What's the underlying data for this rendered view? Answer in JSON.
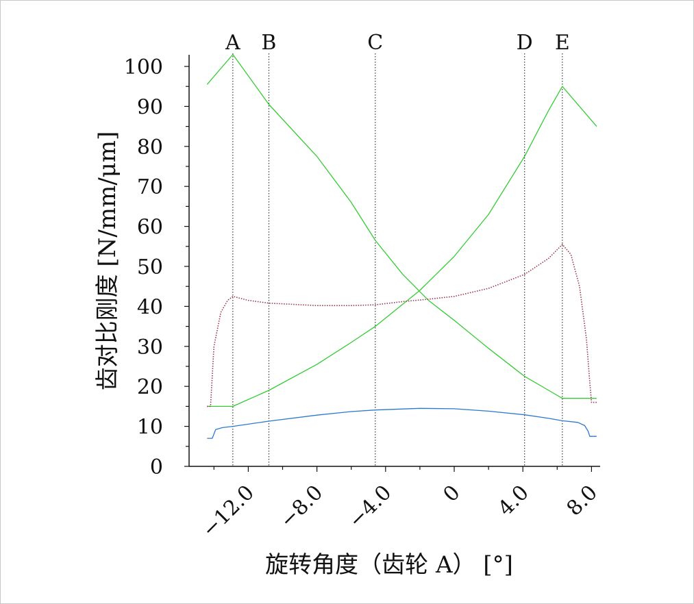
{
  "chart_data": {
    "type": "line",
    "xlabel": "旋转角度（齿轮 A） [°]",
    "ylabel": "齿对比刚度 [N/mm/μm]",
    "xlim": [
      -14.6,
      8.3
    ],
    "ylim": [
      0,
      103
    ],
    "x_ticks": [
      -12,
      -8,
      -4,
      0,
      4,
      8
    ],
    "x_tick_labels": [
      "−12.0",
      "−8.0",
      "−4.0",
      "0",
      "4.0",
      "8.0"
    ],
    "y_ticks": [
      0,
      10,
      20,
      30,
      40,
      50,
      60,
      70,
      80,
      90,
      100
    ],
    "markers": [
      {
        "label": "A",
        "x": -12.9
      },
      {
        "label": "B",
        "x": -10.8
      },
      {
        "label": "C",
        "x": -4.6
      },
      {
        "label": "D",
        "x": 4.1
      },
      {
        "label": "E",
        "x": 6.3
      }
    ],
    "series": [
      {
        "color": "#33cc33",
        "style": "solid",
        "points": [
          [
            -14.4,
            95.5
          ],
          [
            -12.9,
            103
          ],
          [
            -10.8,
            90.5
          ],
          [
            -8.0,
            77.5
          ],
          [
            -6.0,
            66
          ],
          [
            -4.6,
            56.5
          ],
          [
            -3.0,
            48
          ],
          [
            -1.5,
            41.5
          ],
          [
            0.0,
            36.5
          ],
          [
            2.0,
            29.5
          ],
          [
            4.1,
            22.5
          ],
          [
            5.5,
            19
          ],
          [
            6.3,
            17
          ],
          [
            8.3,
            17
          ]
        ]
      },
      {
        "color": "#33cc33",
        "style": "solid",
        "points": [
          [
            -14.4,
            15
          ],
          [
            -12.9,
            15
          ],
          [
            -10.8,
            19
          ],
          [
            -8.0,
            25.5
          ],
          [
            -6.0,
            31
          ],
          [
            -4.6,
            35
          ],
          [
            -2.0,
            44
          ],
          [
            0.0,
            52.5
          ],
          [
            2.0,
            63
          ],
          [
            4.1,
            77.5
          ],
          [
            5.5,
            89
          ],
          [
            6.3,
            95
          ],
          [
            8.3,
            85
          ]
        ]
      },
      {
        "color": "#993344",
        "style": "dotted",
        "points": [
          [
            -14.4,
            15
          ],
          [
            -14.2,
            15
          ],
          [
            -14.0,
            30
          ],
          [
            -13.6,
            38.5
          ],
          [
            -13.2,
            41.5
          ],
          [
            -12.9,
            42.5
          ],
          [
            -12.0,
            41.5
          ],
          [
            -10.8,
            40.8
          ],
          [
            -8.0,
            40.2
          ],
          [
            -6.0,
            40.2
          ],
          [
            -4.6,
            40.4
          ],
          [
            -3.0,
            41.2
          ],
          [
            -1.5,
            41.8
          ],
          [
            0.0,
            42.5
          ],
          [
            2.0,
            44.5
          ],
          [
            4.1,
            48
          ],
          [
            5.5,
            52
          ],
          [
            6.3,
            55.5
          ],
          [
            6.8,
            53
          ],
          [
            7.3,
            45
          ],
          [
            7.7,
            32
          ],
          [
            7.9,
            21
          ],
          [
            8.0,
            16
          ],
          [
            8.3,
            16
          ]
        ]
      },
      {
        "color": "#2b78cf",
        "style": "solid",
        "points": [
          [
            -14.4,
            7
          ],
          [
            -14.1,
            7
          ],
          [
            -13.9,
            9.2
          ],
          [
            -13.5,
            9.7
          ],
          [
            -12.9,
            10
          ],
          [
            -10.8,
            11.3
          ],
          [
            -8.0,
            12.8
          ],
          [
            -6.0,
            13.7
          ],
          [
            -4.6,
            14.1
          ],
          [
            -2.0,
            14.5
          ],
          [
            0.0,
            14.4
          ],
          [
            2.0,
            13.8
          ],
          [
            4.1,
            12.9
          ],
          [
            5.5,
            12
          ],
          [
            6.3,
            11.4
          ],
          [
            7.2,
            11
          ],
          [
            7.6,
            10.2
          ],
          [
            7.8,
            8.8
          ],
          [
            7.9,
            7.5
          ],
          [
            8.3,
            7.5
          ]
        ]
      }
    ]
  }
}
